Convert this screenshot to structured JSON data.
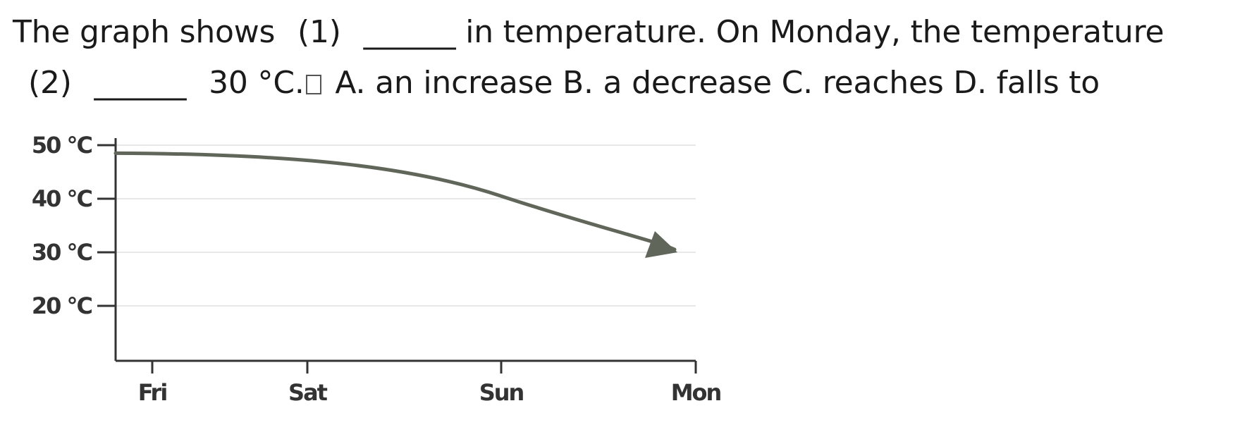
{
  "question": {
    "line1": {
      "prefix": "The graph shows",
      "blank1": "(1)",
      "underline1": "______",
      "middle": "in temperature. On Monday, the temperature"
    },
    "line2": {
      "blank2": "(2)",
      "underline2": "______",
      "after": "30 °C.",
      "options": "A. an increase B. a decrease C. reaches D. falls to"
    }
  },
  "chart_data": {
    "type": "line",
    "categories": [
      "Fri",
      "Sat",
      "Sun",
      "Mon"
    ],
    "yticks": [
      "20 °C",
      "30 °C",
      "40 °C",
      "50 °C"
    ],
    "ylim": [
      10,
      50
    ],
    "series": [
      {
        "values": [
          48.5,
          46.5,
          40.5,
          30
        ]
      }
    ],
    "colors": {
      "line": "#61665a",
      "grid": "#e8e8e8",
      "axis": "#333333"
    }
  }
}
